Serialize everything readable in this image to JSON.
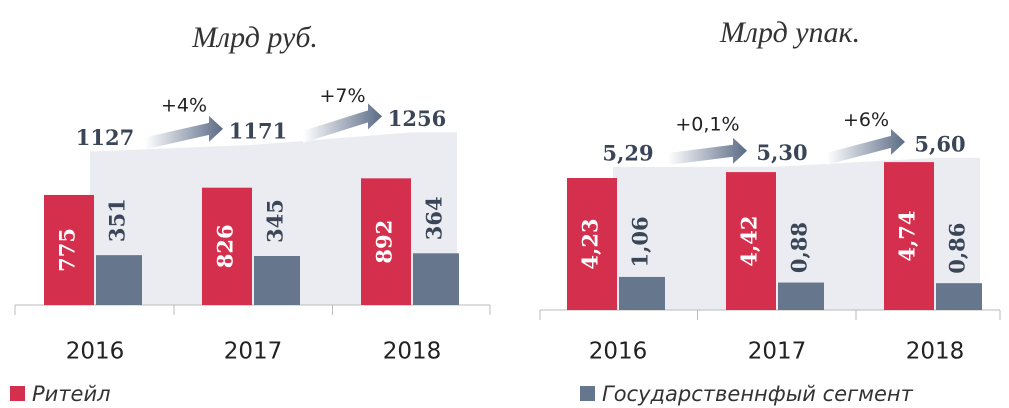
{
  "chart_data": [
    {
      "type": "bar",
      "title": "Млрд руб.",
      "categories": [
        "2016",
        "2017",
        "2018"
      ],
      "series": [
        {
          "name": "Ритейл",
          "color": "#d42f4c",
          "values": [
            775,
            826,
            892
          ]
        },
        {
          "color": "#66768c",
          "values": [
            351,
            345,
            364
          ]
        }
      ],
      "totals": [
        1127,
        1171,
        1256
      ],
      "growth": [
        "+4%",
        "+7%"
      ]
    },
    {
      "type": "bar",
      "title": "Млрд упак.",
      "categories": [
        "2016",
        "2017",
        "2018"
      ],
      "series": [
        {
          "color": "#d42f4c",
          "values": [
            4.23,
            4.42,
            4.74
          ],
          "value_labels": [
            "4,23",
            "4,42",
            "4,74"
          ]
        },
        {
          "name": "Государственнфый сегмент",
          "color": "#66768c",
          "values": [
            1.06,
            0.88,
            0.86
          ],
          "value_labels": [
            "1,06",
            "0,88",
            "0,86"
          ]
        }
      ],
      "totals": [
        5.29,
        5.3,
        5.6
      ],
      "totals_labels": [
        "5,29",
        "5,30",
        "5,60"
      ],
      "growth": [
        "+0,1%",
        "+6%"
      ]
    }
  ]
}
